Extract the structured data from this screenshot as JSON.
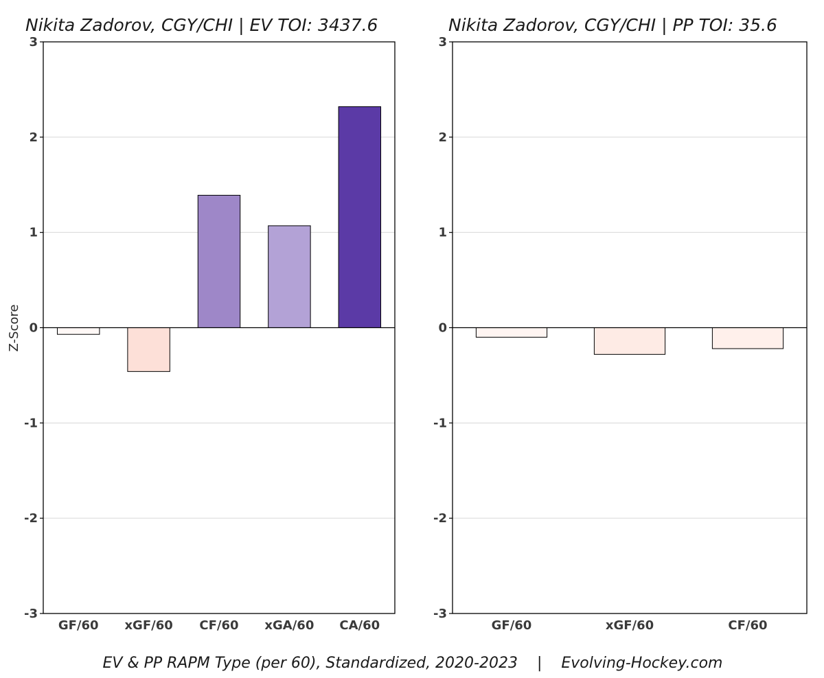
{
  "caption": "EV & PP RAPM Type (per 60), Standardized, 2020-2023    |    Evolving-Hockey.com",
  "chart_data": [
    {
      "type": "bar",
      "title": "Nikita Zadorov, CGY/CHI  |  EV TOI: 3437.6",
      "ylabel": "Z-Score",
      "xlabel": "",
      "ylim": [
        -3,
        3
      ],
      "yticks": [
        3,
        2,
        1,
        0,
        -1,
        -2,
        -3
      ],
      "grid": true,
      "categories": [
        "GF/60",
        "xGF/60",
        "CF/60",
        "xGA/60",
        "CA/60"
      ],
      "values": [
        -0.07,
        -0.46,
        1.39,
        1.07,
        2.32
      ],
      "colors": [
        "#fff8f6",
        "#fde0d8",
        "#9e87c8",
        "#b3a2d6",
        "#5b3aa6"
      ]
    },
    {
      "type": "bar",
      "title": "Nikita Zadorov, CGY/CHI  |  PP TOI: 35.6",
      "ylabel": "",
      "xlabel": "",
      "ylim": [
        -3,
        3
      ],
      "yticks": [
        3,
        2,
        1,
        0,
        -1,
        -2,
        -3
      ],
      "grid": true,
      "categories": [
        "GF/60",
        "xGF/60",
        "CF/60"
      ],
      "values": [
        -0.1,
        -0.28,
        -0.22
      ],
      "colors": [
        "#fff5f2",
        "#feebe5",
        "#fff0eb"
      ]
    }
  ]
}
